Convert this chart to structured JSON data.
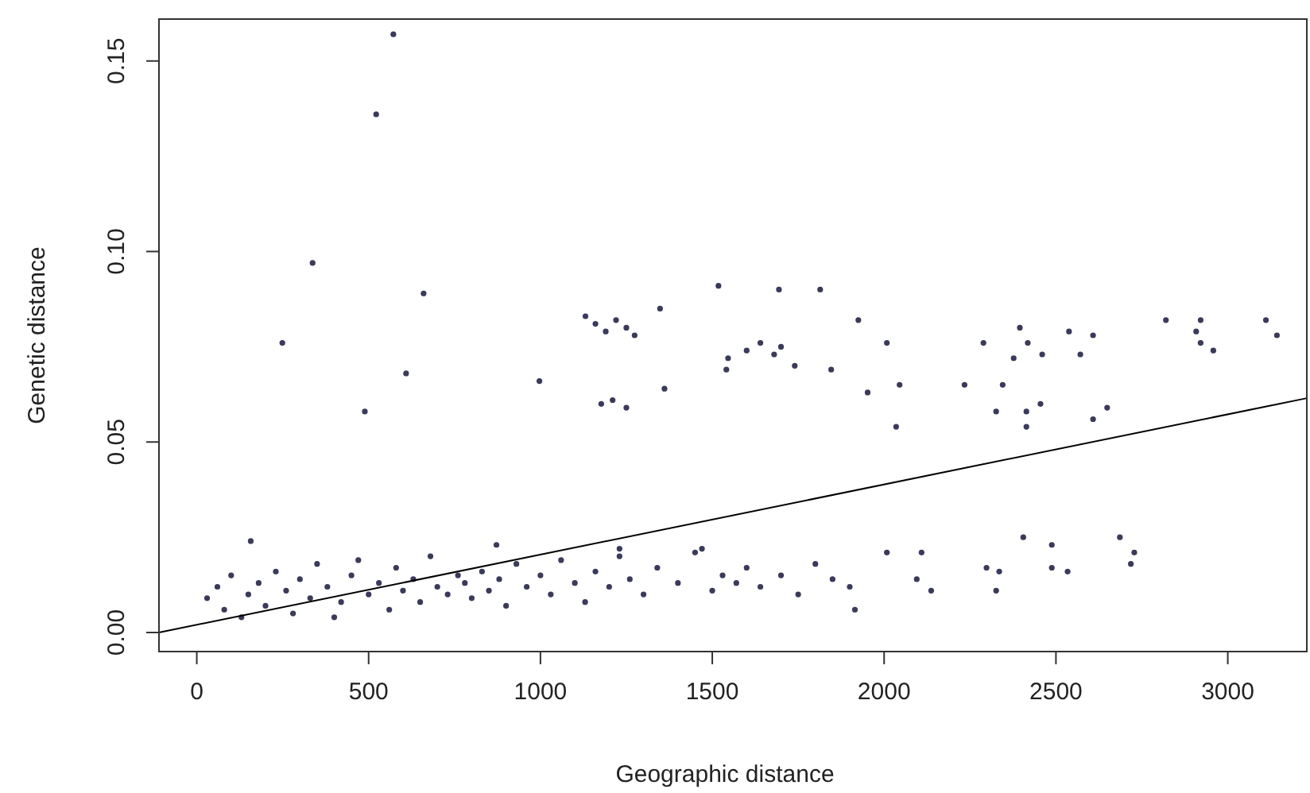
{
  "chart_data": {
    "type": "scatter",
    "xlabel": "Geographic distance",
    "ylabel": "Genetic distance",
    "xlim": [
      -110,
      3230
    ],
    "ylim": [
      -0.005,
      0.161
    ],
    "xticks": [
      0,
      500,
      1000,
      1500,
      2000,
      2500,
      3000
    ],
    "yticks": [
      {
        "value": 0,
        "label": "0.00"
      },
      {
        "value": 0.05,
        "label": "0.05"
      },
      {
        "value": 0.1,
        "label": "0.10"
      },
      {
        "value": 0.15,
        "label": "0.15"
      }
    ],
    "grid": false,
    "marker": "circle",
    "series": [
      {
        "color": "#3a3a5a",
        "x": [
          572,
          522,
          337,
          660,
          249,
          609,
          997,
          1361,
          1131,
          1160,
          1190,
          1220,
          1250,
          1274,
          1348,
          1518,
          1694,
          1814,
          1925,
          2008,
          1541,
          1546,
          1600,
          1640,
          1680,
          1700,
          1740,
          1846,
          1952,
          2045,
          2234,
          2345,
          2289,
          2377,
          2395,
          2418,
          2460,
          2538,
          2571,
          2608,
          2820,
          2921,
          2908,
          2921,
          2958,
          3111,
          3143,
          489,
          2035,
          2326,
          2414,
          2414,
          2455,
          2608,
          2649,
          1177,
          1210,
          1250,
          157,
          872,
          2008,
          2109,
          2095,
          2137,
          1915,
          2298,
          2335,
          2326,
          2405,
          2488,
          2488,
          2534,
          2686,
          2728,
          2718,
          30,
          60,
          80,
          100,
          130,
          150,
          180,
          200,
          230,
          260,
          280,
          300,
          330,
          350,
          380,
          400,
          420,
          450,
          470,
          500,
          530,
          560,
          580,
          600,
          630,
          650,
          680,
          700,
          730,
          760,
          780,
          800,
          830,
          850,
          880,
          900,
          930,
          960,
          1000,
          1030,
          1060,
          1100,
          1130,
          1160,
          1200,
          1230,
          1260,
          1300,
          1340,
          1400,
          1450,
          1500,
          1530,
          1570,
          1600,
          1640,
          1700,
          1750,
          1800,
          1850,
          1900,
          1470,
          1230
        ],
        "values": [
          0.157,
          0.136,
          0.097,
          0.089,
          0.076,
          0.068,
          0.066,
          0.064,
          0.083,
          0.081,
          0.079,
          0.082,
          0.08,
          0.078,
          0.085,
          0.091,
          0.09,
          0.09,
          0.082,
          0.076,
          0.069,
          0.072,
          0.074,
          0.076,
          0.073,
          0.075,
          0.07,
          0.069,
          0.063,
          0.065,
          0.065,
          0.065,
          0.076,
          0.072,
          0.08,
          0.076,
          0.073,
          0.079,
          0.073,
          0.078,
          0.082,
          0.082,
          0.079,
          0.076,
          0.074,
          0.082,
          0.078,
          0.058,
          0.054,
          0.058,
          0.058,
          0.054,
          0.06,
          0.056,
          0.059,
          0.06,
          0.061,
          0.059,
          0.024,
          0.023,
          0.021,
          0.021,
          0.014,
          0.011,
          0.006,
          0.017,
          0.016,
          0.011,
          0.025,
          0.023,
          0.017,
          0.016,
          0.025,
          0.021,
          0.018,
          0.009,
          0.012,
          0.006,
          0.015,
          0.004,
          0.01,
          0.013,
          0.007,
          0.016,
          0.011,
          0.005,
          0.014,
          0.009,
          0.018,
          0.012,
          0.004,
          0.008,
          0.015,
          0.019,
          0.01,
          0.013,
          0.006,
          0.017,
          0.011,
          0.014,
          0.008,
          0.02,
          0.012,
          0.01,
          0.015,
          0.013,
          0.009,
          0.016,
          0.011,
          0.014,
          0.007,
          0.018,
          0.012,
          0.015,
          0.01,
          0.019,
          0.013,
          0.008,
          0.016,
          0.012,
          0.02,
          0.014,
          0.01,
          0.017,
          0.013,
          0.021,
          0.011,
          0.015,
          0.013,
          0.017,
          0.012,
          0.015,
          0.01,
          0.018,
          0.014,
          0.012,
          0.022,
          0.022
        ]
      },
      {
        "type": "line",
        "marker": "none",
        "color": "#000000",
        "x": [
          -110,
          3230
        ],
        "values": [
          0,
          0.0615
        ]
      }
    ]
  }
}
